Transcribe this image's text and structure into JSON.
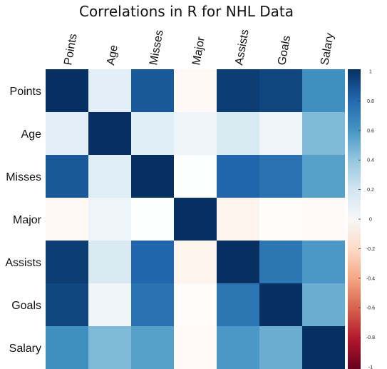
{
  "chart_data": {
    "type": "heatmap",
    "title": "Correlations in R for NHL Data",
    "rows": [
      "Points",
      "Age",
      "Misses",
      "Major",
      "Assists",
      "Goals",
      "Salary"
    ],
    "columns": [
      "Points",
      "Age",
      "Misses",
      "Major",
      "Assists",
      "Goals",
      "Salary"
    ],
    "values": [
      [
        1.0,
        0.12,
        0.85,
        -0.04,
        0.95,
        0.92,
        0.62
      ],
      [
        0.12,
        1.0,
        0.14,
        0.08,
        0.16,
        0.08,
        0.45
      ],
      [
        0.85,
        0.14,
        1.0,
        0.01,
        0.8,
        0.75,
        0.55
      ],
      [
        -0.04,
        0.08,
        0.01,
        1.0,
        -0.06,
        -0.02,
        -0.03
      ],
      [
        0.95,
        0.16,
        0.8,
        -0.06,
        1.0,
        0.73,
        0.58
      ],
      [
        0.92,
        0.08,
        0.75,
        -0.02,
        0.73,
        1.0,
        0.5
      ],
      [
        0.62,
        0.45,
        0.55,
        -0.03,
        0.58,
        0.5,
        1.0
      ]
    ],
    "colorbar": {
      "range": [
        -1,
        1
      ],
      "ticks": [
        "1",
        "0.8",
        "0.6",
        "0.4",
        "0.2",
        "0",
        "-0.2",
        "-0.4",
        "-0.6",
        "-0.8",
        "-1"
      ],
      "colors": {
        "neg": "#67001f",
        "mid": "#ffffff",
        "pos": "#053061"
      }
    },
    "legend_position": "right"
  }
}
